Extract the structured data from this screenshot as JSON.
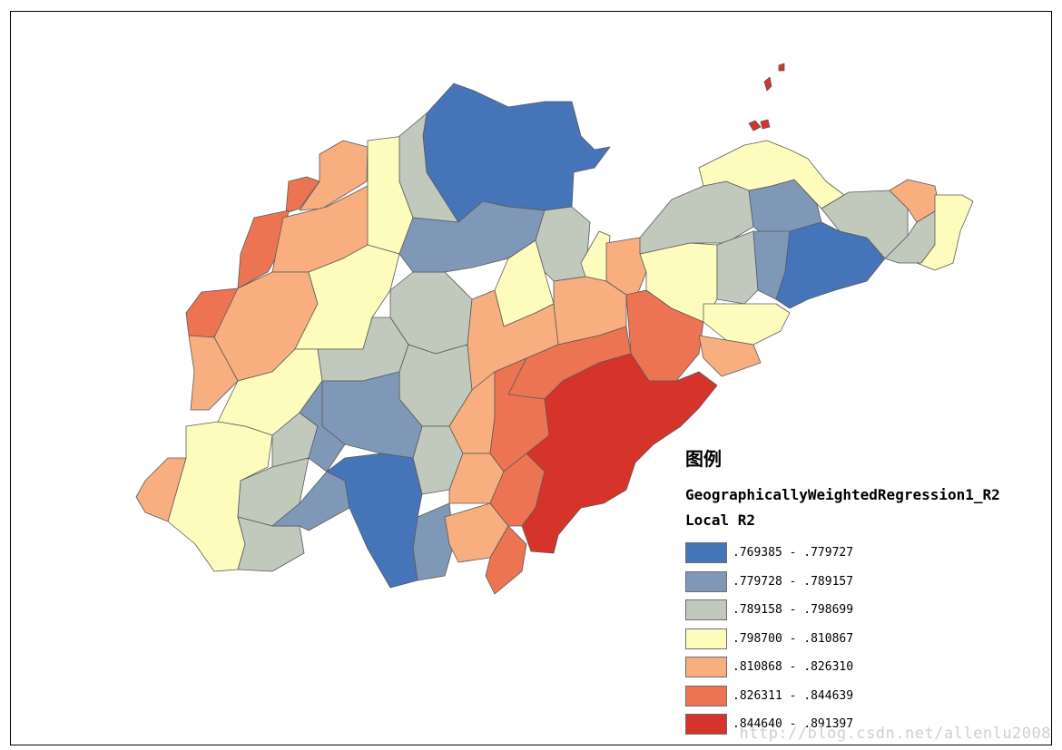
{
  "legend": {
    "title": "图例",
    "layer": "GeographicallyWeightedRegression1_R2",
    "field": "Local R2",
    "classes": [
      {
        "range": ".769385 - .779727",
        "color": "#4674b8"
      },
      {
        "range": ".779728 - .789157",
        "color": "#7f98b8"
      },
      {
        "range": ".789158 - .798699",
        "color": "#c0c9bc"
      },
      {
        "range": ".798700 - .810867",
        "color": "#fefcbd"
      },
      {
        "range": ".810868 - .826310",
        "color": "#f8ae7e"
      },
      {
        "range": ".826311 - .844639",
        "color": "#ed7452"
      },
      {
        "range": ".844640 - .891397",
        "color": "#d6332b"
      }
    ]
  },
  "watermark": "http://blog.csdn.net/allenlu2008"
}
